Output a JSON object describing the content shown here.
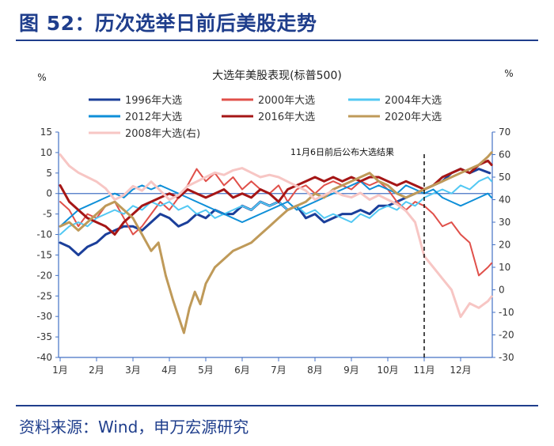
{
  "page": {
    "figure_title": "图 52：历次选举日前后美股走势",
    "source": "资料来源：Wind，申万宏源研究"
  },
  "chart_data": {
    "type": "line",
    "title": "大选年美股表现(标普500)",
    "left_unit": "%",
    "right_unit": "%",
    "annotation": "11月6日前后公布大选结果",
    "annotation_month": 10.0,
    "x_ticks": [
      "1月",
      "2月",
      "3月",
      "4月",
      "5月",
      "6月",
      "7月",
      "8月",
      "9月",
      "10月",
      "11月",
      "12月"
    ],
    "y_left": {
      "min": -40,
      "max": 15,
      "ticks": [
        15,
        10,
        5,
        0,
        -5,
        -10,
        -15,
        -20,
        -25,
        -30,
        -35,
        -40
      ]
    },
    "y_right": {
      "min": -30,
      "max": 70,
      "ticks": [
        70,
        60,
        50,
        40,
        30,
        20,
        10,
        0,
        -10,
        -20,
        -30
      ]
    },
    "series": [
      {
        "name": "1996年大选",
        "color": "#1b3f9a",
        "axis": "left",
        "width": 3,
        "m": [
          0,
          0.25,
          0.5,
          0.75,
          1,
          1.25,
          1.5,
          1.75,
          2,
          2.25,
          2.5,
          2.75,
          3,
          3.25,
          3.5,
          3.75,
          4,
          4.25,
          4.5,
          4.75,
          5,
          5.25,
          5.5,
          5.75,
          6,
          6.25,
          6.5,
          6.75,
          7,
          7.25,
          7.5,
          7.75,
          8,
          8.25,
          8.5,
          8.75,
          9,
          9.25,
          9.5,
          9.75,
          10,
          10.25,
          10.5,
          10.75,
          11,
          11.25,
          11.5,
          11.8
        ],
        "v": [
          -12,
          -13,
          -15,
          -13,
          -12,
          -10,
          -9,
          -8,
          -8,
          -9,
          -7,
          -5,
          -6,
          -8,
          -7,
          -5,
          -6,
          -4,
          -5,
          -5,
          -3,
          -4,
          -2,
          -3,
          -2,
          -4,
          -3,
          -6,
          -5,
          -7,
          -6,
          -5,
          -5,
          -4,
          -5,
          -3,
          -3,
          -2,
          -1,
          0,
          1,
          2,
          3,
          5,
          6,
          5,
          6,
          5
        ]
      },
      {
        "name": "2000年大选",
        "color": "#e0504a",
        "axis": "left",
        "width": 2,
        "m": [
          0,
          0.25,
          0.5,
          0.75,
          1,
          1.25,
          1.5,
          1.75,
          2,
          2.25,
          2.5,
          2.75,
          3,
          3.25,
          3.5,
          3.75,
          4,
          4.25,
          4.5,
          4.75,
          5,
          5.25,
          5.5,
          5.75,
          6,
          6.25,
          6.5,
          6.75,
          7,
          7.25,
          7.5,
          7.75,
          8,
          8.25,
          8.5,
          8.75,
          9,
          9.25,
          9.5,
          9.75,
          10,
          10.25,
          10.5,
          10.75,
          11,
          11.25,
          11.5,
          11.75,
          11.85
        ],
        "v": [
          -2,
          -4,
          -8,
          -5,
          -6,
          -3,
          -2,
          -6,
          -10,
          -8,
          -5,
          -2,
          -4,
          -1,
          2,
          6,
          3,
          5,
          2,
          4,
          1,
          3,
          1,
          0,
          2,
          -2,
          1,
          2,
          0,
          2,
          3,
          2,
          1,
          3,
          2,
          3,
          1,
          -2,
          -4,
          -2,
          -3,
          -5,
          -8,
          -7,
          -10,
          -12,
          -20,
          -18,
          -17
        ]
      },
      {
        "name": "2004年大选",
        "color": "#52c8f3",
        "axis": "left",
        "width": 2,
        "m": [
          0,
          0.25,
          0.5,
          0.75,
          1,
          1.25,
          1.5,
          1.75,
          2,
          2.25,
          2.5,
          2.75,
          3,
          3.25,
          3.5,
          3.75,
          4,
          4.25,
          4.5,
          4.75,
          5,
          5.25,
          5.5,
          5.75,
          6,
          6.25,
          6.5,
          6.75,
          7,
          7.25,
          7.5,
          7.75,
          8,
          8.25,
          8.5,
          8.75,
          9,
          9.25,
          9.5,
          9.75,
          10,
          10.25,
          10.5,
          10.75,
          11,
          11.25,
          11.5,
          11.75,
          11.85
        ],
        "v": [
          -10,
          -8,
          -7,
          -8,
          -6,
          -5,
          -4,
          -5,
          -3,
          -4,
          -2,
          -3,
          -2,
          -4,
          -3,
          -5,
          -4,
          -6,
          -5,
          -4,
          -3,
          -4,
          -2,
          -3,
          -2,
          -4,
          -3,
          -5,
          -4,
          -6,
          -5,
          -6,
          -7,
          -5,
          -6,
          -4,
          -3,
          -4,
          -2,
          -3,
          -1,
          0,
          1,
          0,
          2,
          1,
          3,
          4,
          3
        ]
      },
      {
        "name": "2012年大选",
        "color": "#0e8fd8",
        "axis": "left",
        "width": 2,
        "m": [
          0,
          0.25,
          0.5,
          0.75,
          1,
          1.25,
          1.5,
          1.75,
          2,
          2.25,
          2.5,
          2.75,
          3,
          3.25,
          3.5,
          3.75,
          4,
          4.25,
          4.5,
          4.75,
          5,
          5.25,
          5.5,
          5.75,
          6,
          6.25,
          6.5,
          6.75,
          7,
          7.25,
          7.5,
          7.75,
          8,
          8.25,
          8.5,
          8.75,
          9,
          9.25,
          9.5,
          9.75,
          10,
          10.25,
          10.5,
          10.75,
          11,
          11.25,
          11.5,
          11.75,
          11.85
        ],
        "v": [
          -8,
          -6,
          -4,
          -3,
          -2,
          -1,
          0,
          -1,
          1,
          2,
          1,
          2,
          1,
          0,
          -1,
          -2,
          -3,
          -4,
          -5,
          -6,
          -7,
          -6,
          -5,
          -4,
          -3,
          -2,
          -4,
          -3,
          -2,
          -1,
          0,
          1,
          2,
          3,
          1,
          2,
          1,
          0,
          2,
          1,
          0,
          1,
          -1,
          -2,
          -3,
          -2,
          -1,
          0,
          -1
        ]
      },
      {
        "name": "2016年大选",
        "color": "#a51616",
        "axis": "left",
        "width": 3,
        "m": [
          0,
          0.25,
          0.5,
          0.75,
          1,
          1.25,
          1.5,
          1.75,
          2,
          2.25,
          2.5,
          2.75,
          3,
          3.25,
          3.5,
          3.75,
          4,
          4.25,
          4.5,
          4.75,
          5,
          5.25,
          5.5,
          5.75,
          6,
          6.25,
          6.5,
          6.75,
          7,
          7.25,
          7.5,
          7.75,
          8,
          8.25,
          8.5,
          8.75,
          9,
          9.25,
          9.5,
          9.75,
          10,
          10.25,
          10.5,
          10.75,
          11,
          11.25,
          11.5,
          11.75,
          11.85
        ],
        "v": [
          2,
          -2,
          -4,
          -6,
          -7,
          -8,
          -10,
          -7,
          -5,
          -3,
          -2,
          -1,
          0,
          -1,
          1,
          0,
          -1,
          0,
          1,
          -1,
          0,
          -1,
          1,
          0,
          -2,
          1,
          2,
          3,
          4,
          3,
          4,
          3,
          4,
          3,
          4,
          4,
          3,
          2,
          3,
          2,
          1,
          2,
          4,
          5,
          6,
          5,
          7,
          8,
          7
        ]
      },
      {
        "name": "2020年大选",
        "color": "#bf9a59",
        "axis": "left",
        "width": 3,
        "m": [
          0,
          0.25,
          0.5,
          0.75,
          1,
          1.25,
          1.5,
          1.75,
          2,
          2.25,
          2.5,
          2.7,
          2.9,
          3.1,
          3.25,
          3.4,
          3.55,
          3.7,
          3.85,
          4,
          4.25,
          4.5,
          4.75,
          5,
          5.25,
          5.5,
          5.75,
          6,
          6.25,
          6.5,
          6.75,
          7,
          7.25,
          7.5,
          7.75,
          8,
          8.25,
          8.5,
          8.75,
          9,
          9.25,
          9.5,
          9.75,
          10,
          10.25,
          10.5,
          10.75,
          11,
          11.25,
          11.5,
          11.75,
          11.85
        ],
        "v": [
          -8,
          -7,
          -9,
          -7,
          -5,
          -3,
          -2,
          -4,
          -6,
          -10,
          -14,
          -12,
          -20,
          -26,
          -30,
          -34,
          -28,
          -24,
          -27,
          -22,
          -18,
          -16,
          -14,
          -13,
          -12,
          -10,
          -8,
          -6,
          -4,
          -3,
          -2,
          0,
          -1,
          1,
          2,
          3,
          4,
          5,
          3,
          2,
          0,
          -1,
          0,
          1,
          2,
          3,
          4,
          5,
          6,
          7,
          9,
          10
        ]
      },
      {
        "name": "2008年大选(右)",
        "color": "#f7c6c4",
        "axis": "right",
        "width": 3,
        "m": [
          0,
          0.25,
          0.5,
          0.75,
          1,
          1.25,
          1.5,
          1.75,
          2,
          2.25,
          2.5,
          2.75,
          3,
          3.25,
          3.5,
          3.75,
          4,
          4.25,
          4.5,
          4.75,
          5,
          5.25,
          5.5,
          5.75,
          6,
          6.25,
          6.5,
          6.75,
          7,
          7.25,
          7.5,
          7.75,
          8,
          8.25,
          8.5,
          8.75,
          9,
          9.25,
          9.5,
          9.75,
          10,
          10.25,
          10.5,
          10.75,
          11,
          11.25,
          11.5,
          11.75,
          11.85
        ],
        "v": [
          60,
          55,
          52,
          50,
          48,
          45,
          40,
          42,
          46,
          44,
          48,
          44,
          40,
          42,
          46,
          48,
          50,
          52,
          51,
          53,
          54,
          52,
          50,
          51,
          50,
          48,
          46,
          44,
          40,
          42,
          44,
          42,
          41,
          43,
          40,
          42,
          40,
          38,
          35,
          30,
          15,
          10,
          5,
          0,
          -12,
          -6,
          -8,
          -5,
          -3
        ]
      }
    ]
  }
}
